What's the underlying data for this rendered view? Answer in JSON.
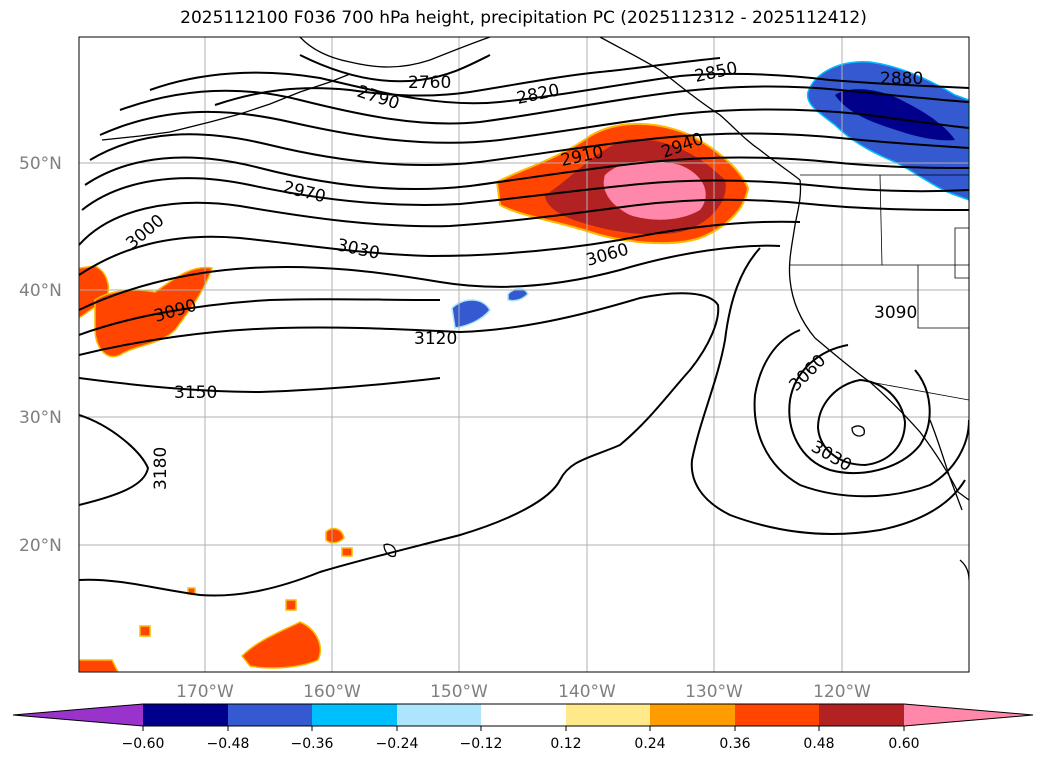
{
  "title": "2025112100 F036 700 hPa height, precipitation PC (2025112312 - 2025112412)",
  "map": {
    "lat_labels": [
      "50°N",
      "40°N",
      "30°N",
      "20°N"
    ],
    "lon_labels": [
      "170°W",
      "160°W",
      "150°W",
      "140°W",
      "130°W",
      "120°W"
    ],
    "contour_labels": [
      {
        "id": "c2760",
        "text": "2760"
      },
      {
        "id": "c2790",
        "text": "2790"
      },
      {
        "id": "c2820",
        "text": "2820"
      },
      {
        "id": "c2850",
        "text": "2850"
      },
      {
        "id": "c2880",
        "text": "2880"
      },
      {
        "id": "c2910",
        "text": "2910"
      },
      {
        "id": "c2940",
        "text": "2940"
      },
      {
        "id": "c2970",
        "text": "2970"
      },
      {
        "id": "c3000",
        "text": "3000"
      },
      {
        "id": "c3030a",
        "text": "3030"
      },
      {
        "id": "c3060a",
        "text": "3060"
      },
      {
        "id": "c3090a",
        "text": "3090"
      },
      {
        "id": "c3120",
        "text": "3120"
      },
      {
        "id": "c3150",
        "text": "3150"
      },
      {
        "id": "c3180",
        "text": "3180"
      },
      {
        "id": "c3090b",
        "text": "3090"
      },
      {
        "id": "c3060b",
        "text": "3060"
      },
      {
        "id": "c3030b",
        "text": "3030"
      }
    ]
  },
  "colorbar": {
    "colors": [
      "#9933cc",
      "#00008b",
      "#3459d1",
      "#00bfff",
      "#ade5ff",
      "#ffffff",
      "#ffe98a",
      "#ff9d00",
      "#ff4500",
      "#b22222",
      "#ff88aa"
    ],
    "tick_labels": [
      "−0.60",
      "−0.48",
      "−0.36",
      "−0.24",
      "−0.12",
      "0.12",
      "0.24",
      "0.36",
      "0.48",
      "0.60"
    ]
  }
}
